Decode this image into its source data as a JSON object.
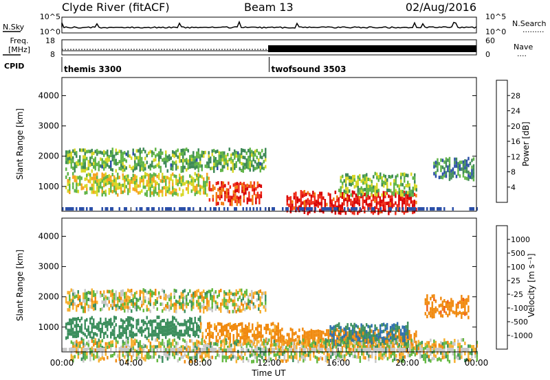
{
  "header": {
    "station": "Clyde River (fitACF)",
    "beam": "Beam 13",
    "date": "02/Aug/2016"
  },
  "noise_panel": {
    "left_label": "N.Sky",
    "left_ticks": [
      "10^5",
      "10^0"
    ],
    "right_ticks": [
      "10^5",
      "10^0"
    ],
    "right_label": "N.Search",
    "right_legend": "........."
  },
  "freq_panel": {
    "left_label_1": "Freq.",
    "left_label_2": "[MHz]",
    "left_ticks": [
      "18",
      "8"
    ],
    "right_ticks": [
      "60",
      "0"
    ],
    "right_label": "Nave",
    "right_legend": "....",
    "cpid_label": "CPID"
  },
  "cpid_segments": [
    {
      "name": "themis 3300",
      "start_hour": 0
    },
    {
      "name": "twofsound 3503",
      "start_hour": 12
    }
  ],
  "colors": {
    "power": [
      "#0000ff",
      "#2b4fa8",
      "#3f8a58",
      "#62b54a",
      "#d8d829",
      "#f6a623",
      "#f07a10",
      "#ef2b1a",
      "#d80000"
    ],
    "velocity": [
      "#e00000",
      "#f06018",
      "#f08a10",
      "#f6b030",
      "#c8c8c8",
      "#c8c8c8",
      "#63b840",
      "#3d8f5e",
      "#2e6fae",
      "#2b3f9e"
    ]
  },
  "chart_data": [
    {
      "type": "heatmap",
      "title": "",
      "xlabel": "",
      "ylabel": "Slant Range [km]",
      "xlim": [
        0,
        24
      ],
      "ylim": [
        180,
        4600
      ],
      "yticks": [
        "1000",
        "2000",
        "3000",
        "4000"
      ],
      "colorbar": {
        "label": "Power [dB]",
        "ticks": [
          "4",
          "8",
          "12",
          "16",
          "20",
          "24",
          "28"
        ],
        "range": [
          0,
          30
        ]
      },
      "features": [
        {
          "start_hour": 0.2,
          "end_hour": 11.8,
          "range_km": 1900,
          "value_db": 11
        },
        {
          "start_hour": 0.2,
          "end_hour": 8.5,
          "range_km": 1100,
          "value_db": 15
        },
        {
          "start_hour": 8.5,
          "end_hour": 11.5,
          "range_km": 800,
          "value_db": 25
        },
        {
          "start_hour": 13.0,
          "end_hour": 20.5,
          "range_km": 500,
          "value_db": 27
        },
        {
          "start_hour": 16.0,
          "end_hour": 20.5,
          "range_km": 1100,
          "value_db": 12
        },
        {
          "start_hour": 21.5,
          "end_hour": 23.8,
          "range_km": 1600,
          "value_db": 8
        }
      ]
    },
    {
      "type": "heatmap",
      "title": "",
      "xlabel": "Time UT",
      "ylabel": "Slant Range [km]",
      "xlim": [
        0,
        24
      ],
      "ylim": [
        180,
        4600
      ],
      "xticks": [
        "00:00",
        "04:00",
        "08:00",
        "12:00",
        "16:00",
        "20:00",
        "00:00"
      ],
      "yticks": [
        "1000",
        "2000",
        "3000",
        "4000"
      ],
      "colorbar": {
        "label": "Velocity [m s⁻¹]",
        "ticks": [
          "1000",
          "500",
          "100",
          "25",
          "-25",
          "-100",
          "-500",
          "-1000"
        ]
      },
      "features": [
        {
          "start_hour": 0.2,
          "end_hour": 11.8,
          "range_km": 1900,
          "value_ms": 0
        },
        {
          "start_hour": 0.2,
          "end_hour": 8.0,
          "range_km": 1000,
          "value_ms": 300
        },
        {
          "start_hour": 8.0,
          "end_hour": 12.5,
          "range_km": 800,
          "value_ms": -200
        },
        {
          "start_hour": 12.5,
          "end_hour": 20.5,
          "range_km": 600,
          "value_ms": -300
        },
        {
          "start_hour": 15.5,
          "end_hour": 20.0,
          "range_km": 800,
          "value_ms": 500
        },
        {
          "start_hour": 0.5,
          "end_hour": 24.0,
          "range_km": 250,
          "value_ms": 0
        },
        {
          "start_hour": 21.0,
          "end_hour": 23.5,
          "range_km": 1700,
          "value_ms": -400
        }
      ]
    }
  ]
}
